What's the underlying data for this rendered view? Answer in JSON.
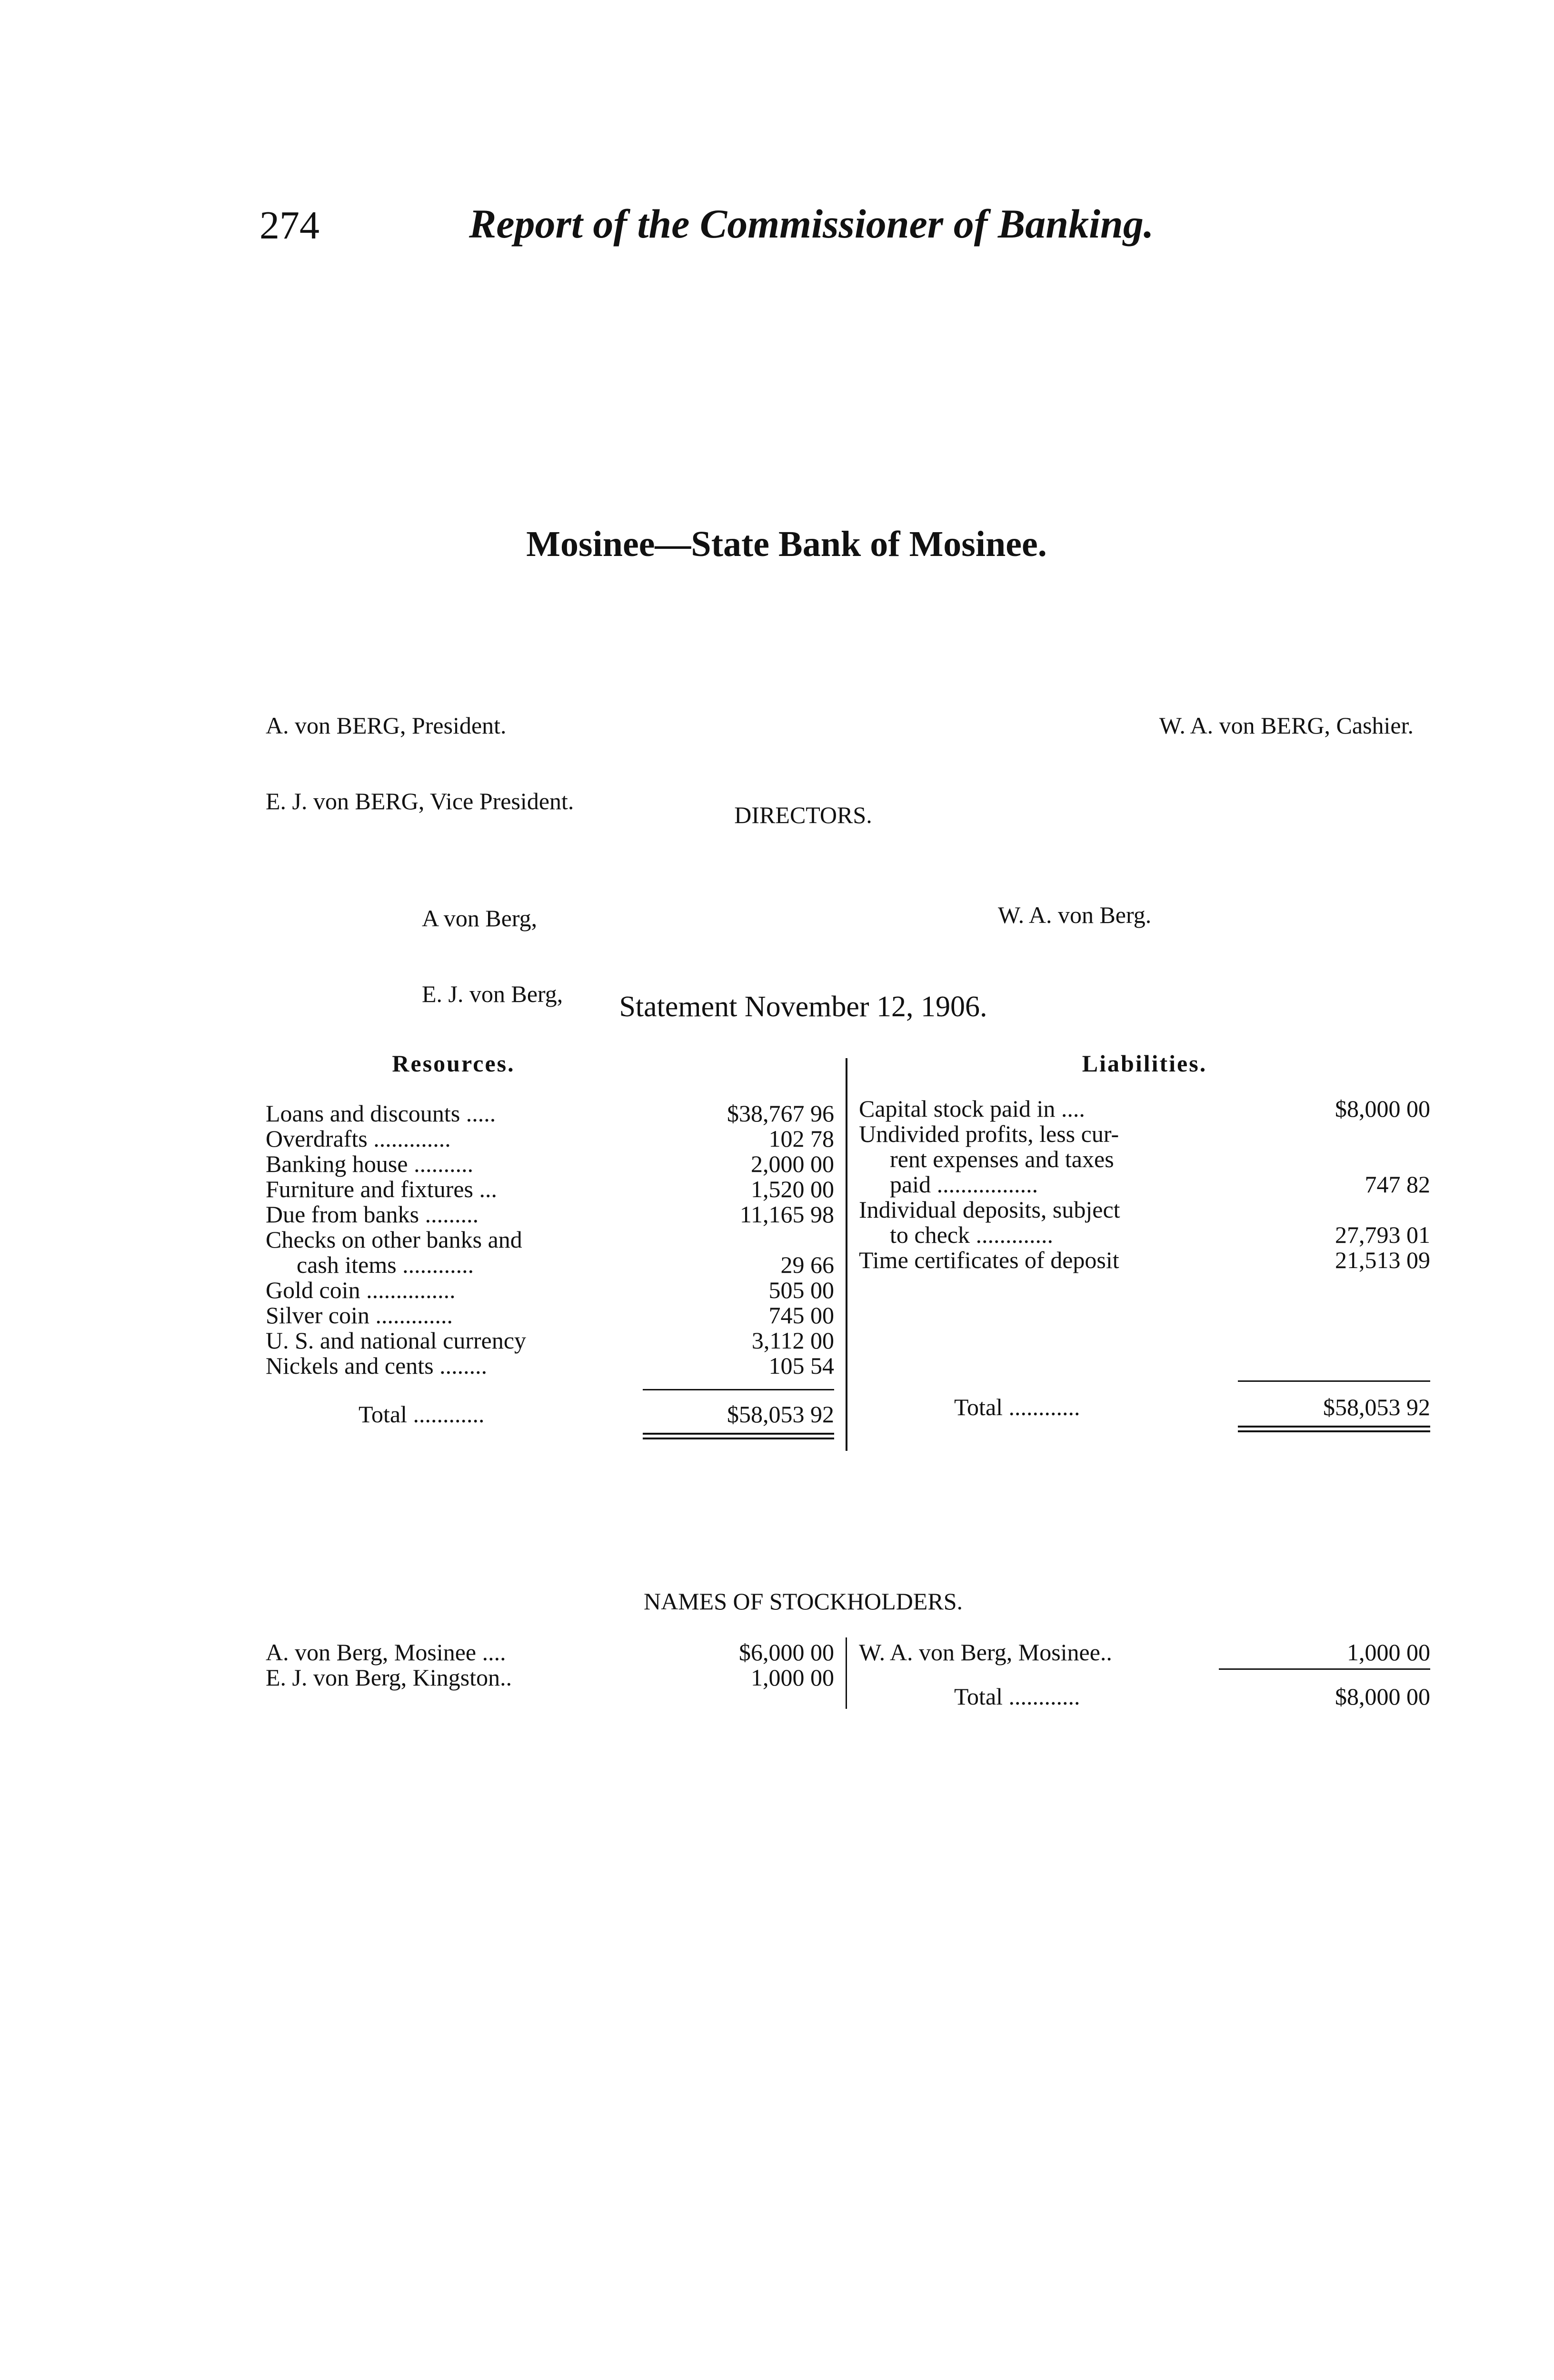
{
  "header": {
    "page_number": "274",
    "running_title": "Report of the Commissioner of Banking."
  },
  "title": "Mosinee—State Bank of Mosinee.",
  "officers": {
    "left": [
      "A. von BERG, President.",
      "E. J. von BERG, Vice President."
    ],
    "right": [
      "W. A. von BERG, Cashier."
    ]
  },
  "directors": {
    "heading": "DIRECTORS.",
    "left": [
      "A von Berg,",
      "E. J. von Berg,"
    ],
    "right": [
      "W. A. von Berg."
    ]
  },
  "statement": {
    "heading": "Statement November 12, 1906.",
    "resources": {
      "heading": "Resources.",
      "rows": [
        {
          "label": "Loans and discounts .....",
          "amount": "$38,767 96"
        },
        {
          "label": "Overdrafts .............",
          "amount": "102 78"
        },
        {
          "label": "Banking house ..........",
          "amount": "2,000 00"
        },
        {
          "label": "Furniture and fixtures ...",
          "amount": "1,520 00"
        },
        {
          "label": "Due from banks .........",
          "amount": "11,165 98"
        },
        {
          "label": "Checks on other banks and",
          "amount": ""
        },
        {
          "label": "cash items ............",
          "amount": "29 66",
          "indent": true
        },
        {
          "label": "Gold coin ...............",
          "amount": "505 00"
        },
        {
          "label": "Silver coin .............",
          "amount": "745 00"
        },
        {
          "label": "U. S. and national currency",
          "amount": "3,112 00"
        },
        {
          "label": "Nickels and cents ........",
          "amount": "105 54"
        }
      ],
      "total_label": "Total ............",
      "total": "$58,053 92"
    },
    "liabilities": {
      "heading": "Liabilities.",
      "rows": [
        {
          "label": "Capital stock paid in ....",
          "amount": "$8,000 00"
        },
        {
          "label": "Undivided profits, less cur-",
          "amount": ""
        },
        {
          "label": "rent expenses and taxes",
          "amount": "",
          "indent": true
        },
        {
          "label": "paid .................",
          "amount": "747 82",
          "indent": true
        },
        {
          "label": "Individual deposits, subject",
          "amount": ""
        },
        {
          "label": "to check .............",
          "amount": "27,793 01",
          "indent": true
        },
        {
          "label": "Time certificates of deposit",
          "amount": "21,513 09"
        }
      ],
      "total_label": "Total ............",
      "total": "$58,053 92"
    }
  },
  "stockholders": {
    "heading": "NAMES OF STOCKHOLDERS.",
    "left": [
      {
        "label": "A. von Berg, Mosinee ....",
        "amount": "$6,000 00"
      },
      {
        "label": "E. J. von Berg, Kingston..",
        "amount": "1,000 00"
      }
    ],
    "right": [
      {
        "label": "W. A. von Berg, Mosinee..",
        "amount": "1,000 00"
      }
    ],
    "total_label": "Total ............",
    "total": "$8,000 00"
  }
}
